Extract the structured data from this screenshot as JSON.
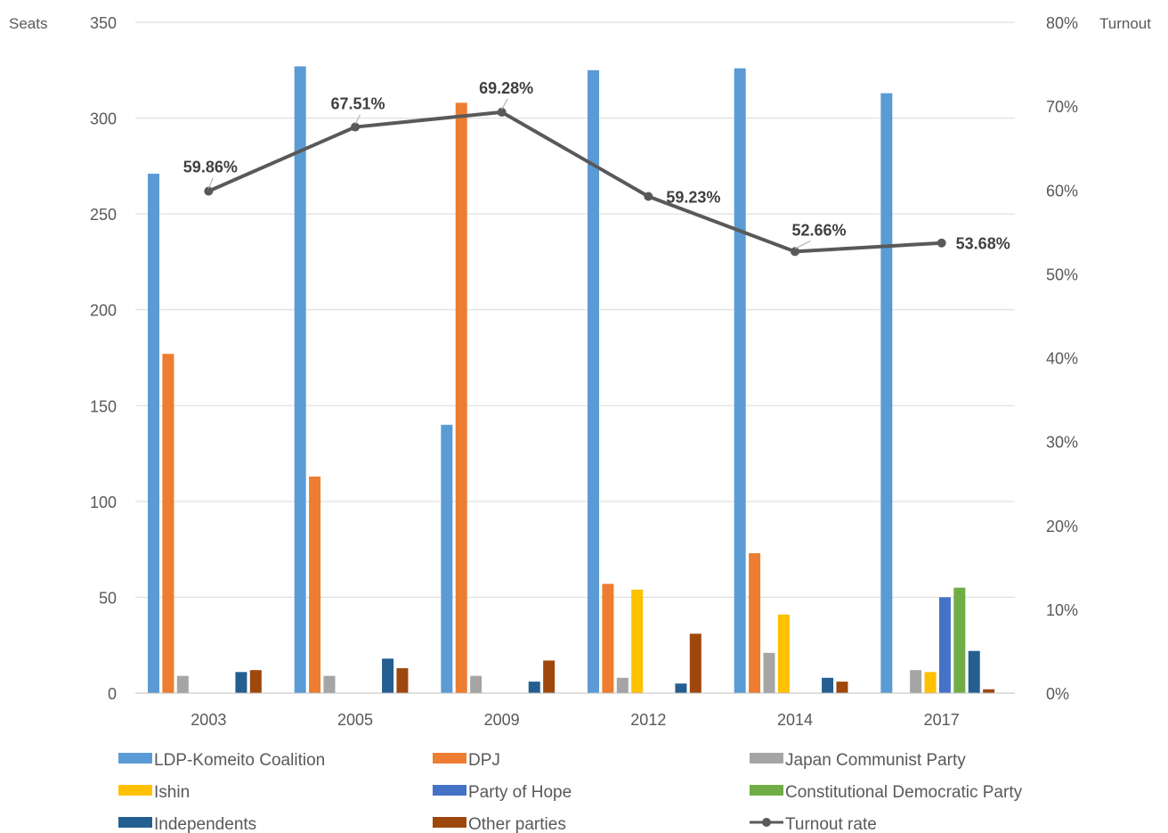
{
  "chart_data": {
    "type": "bar",
    "categories": [
      "2003",
      "2005",
      "2009",
      "2012",
      "2014",
      "2017"
    ],
    "y_left": {
      "title": "Seats",
      "min": 0,
      "max": 350,
      "ticks": [
        "0",
        "50",
        "100",
        "150",
        "200",
        "250",
        "300",
        "350"
      ]
    },
    "y_right": {
      "title": "Turnout",
      "min": 0,
      "max": 80,
      "ticks": [
        "0%",
        "10%",
        "20%",
        "30%",
        "40%",
        "50%",
        "60%",
        "70%",
        "80%"
      ]
    },
    "grid": true,
    "legend_position": "bottom",
    "series": [
      {
        "name": "LDP-Komeito Coalition",
        "color": "#5B9BD5",
        "values": [
          271,
          327,
          140,
          325,
          326,
          313
        ]
      },
      {
        "name": "DPJ",
        "color": "#ED7D31",
        "values": [
          177,
          113,
          308,
          57,
          73,
          null
        ]
      },
      {
        "name": "Japan Communist Party",
        "color": "#A5A5A5",
        "values": [
          9,
          9,
          9,
          8,
          21,
          12
        ]
      },
      {
        "name": "Ishin",
        "color": "#FFC000",
        "values": [
          null,
          null,
          null,
          54,
          41,
          11
        ]
      },
      {
        "name": "Party of Hope",
        "color": "#4472C4",
        "values": [
          null,
          null,
          null,
          null,
          null,
          50
        ]
      },
      {
        "name": "Constitutional Democratic Party",
        "color": "#70AD47",
        "values": [
          null,
          null,
          null,
          null,
          null,
          55
        ]
      },
      {
        "name": "Independents",
        "color": "#255E91",
        "values": [
          11,
          18,
          6,
          5,
          8,
          22
        ]
      },
      {
        "name": "Other parties",
        "color": "#9E480E",
        "values": [
          12,
          13,
          17,
          31,
          6,
          2
        ]
      }
    ],
    "line_series": {
      "name": "Turnout rate",
      "color": "#595959",
      "axis": "right",
      "values": [
        59.86,
        67.51,
        69.28,
        59.23,
        52.66,
        53.68
      ],
      "labels": [
        "59.86%",
        "67.51%",
        "69.28%",
        "59.23%",
        "52.66%",
        "53.68%"
      ]
    }
  }
}
